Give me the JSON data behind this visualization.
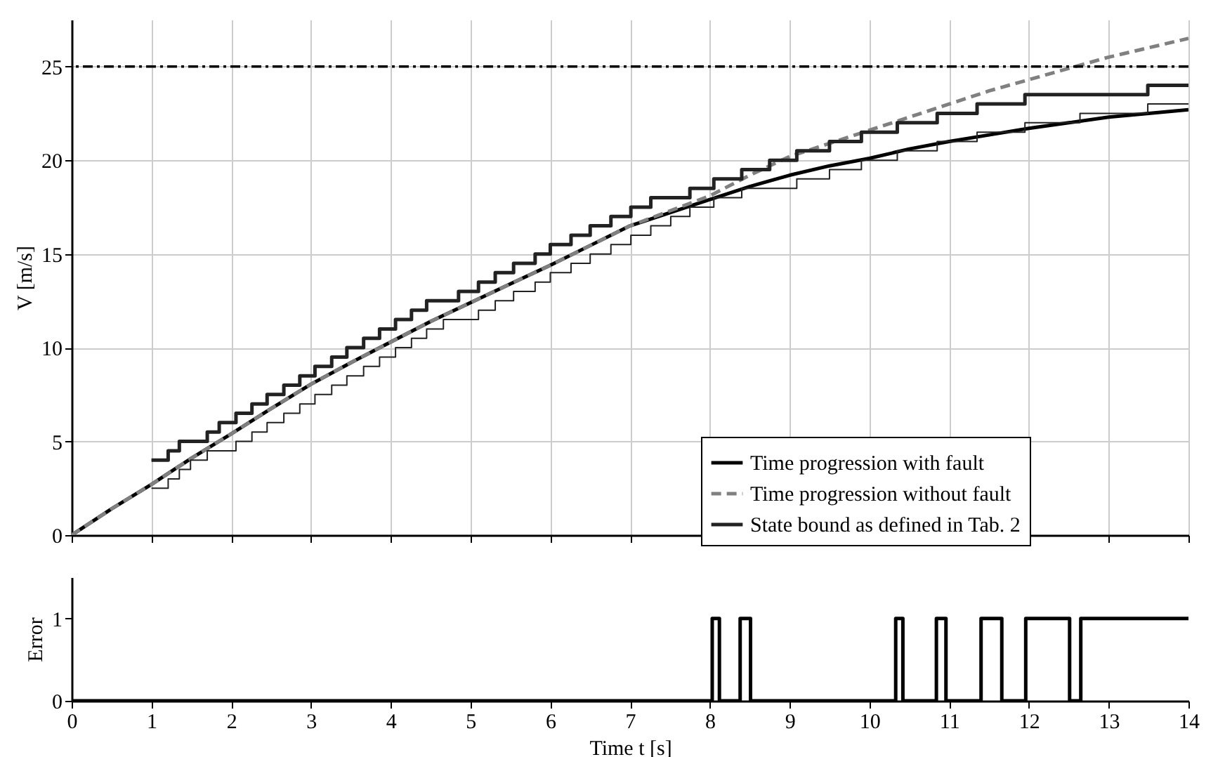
{
  "chart_data": [
    {
      "type": "line",
      "ylabel": "V [m/s]",
      "xlim": [
        0,
        14
      ],
      "ylim": [
        0,
        27.5
      ],
      "xticks": [
        0,
        1,
        2,
        3,
        4,
        5,
        6,
        7,
        8,
        9,
        10,
        11,
        12,
        13,
        14
      ],
      "yticks": [
        0,
        5,
        10,
        15,
        20,
        25
      ],
      "tick_labels": "y",
      "grid": true,
      "legend": "bottom right",
      "ref_lines": [
        {
          "axis": "y",
          "value": 25,
          "color": "#000000",
          "line_style": "dashdot"
        }
      ],
      "series": [
        {
          "name": "Time progression with fault",
          "color": "#000000",
          "line_style": "solid",
          "x": [
            0,
            0.5,
            1,
            1.5,
            2,
            2.5,
            3,
            3.5,
            4,
            4.5,
            5,
            5.5,
            6,
            6.5,
            7,
            7.5,
            8,
            8.5,
            9,
            9.5,
            10,
            10.5,
            11,
            11.5,
            12,
            12.5,
            13,
            13.5,
            14
          ],
          "values": [
            0,
            1.4,
            2.7,
            4.1,
            5.4,
            6.75,
            8.05,
            9.2,
            10.3,
            11.4,
            12.4,
            13.4,
            14.4,
            15.45,
            16.5,
            17.2,
            17.9,
            18.6,
            19.2,
            19.7,
            20.1,
            20.6,
            21.0,
            21.35,
            21.7,
            22.0,
            22.3,
            22.5,
            22.7
          ]
        },
        {
          "name": "Time progression without fault",
          "color": "#808080",
          "line_style": "dashed",
          "x": [
            0,
            0.5,
            1,
            1.5,
            2,
            2.5,
            3,
            3.5,
            4,
            4.5,
            5,
            5.5,
            6,
            6.5,
            7,
            7.5,
            8,
            8.5,
            9,
            9.5,
            10,
            10.5,
            11,
            11.5,
            12,
            12.5,
            13,
            13.5,
            14
          ],
          "values": [
            0,
            1.4,
            2.7,
            4.1,
            5.4,
            6.75,
            8.05,
            9.2,
            10.3,
            11.4,
            12.4,
            13.4,
            14.4,
            15.45,
            16.5,
            17.3,
            18.1,
            19.2,
            20.2,
            20.9,
            21.6,
            22.3,
            23.0,
            23.7,
            24.3,
            24.9,
            25.5,
            26.0,
            26.5
          ]
        },
        {
          "name": "State bound as defined in Tab. 2",
          "type": "step",
          "color": "#222222",
          "line_style": "solid",
          "x": [
            1,
            1.21,
            1.35,
            1.7,
            1.85,
            2.06,
            2.26,
            2.45,
            2.66,
            2.86,
            3.05,
            3.26,
            3.45,
            3.66,
            3.86,
            4.06,
            4.26,
            4.45,
            4.85,
            5.1,
            5.31,
            5.54,
            5.81,
            6.0,
            6.26,
            6.5,
            6.76,
            7.01,
            7.26,
            7.75,
            8.05,
            8.4,
            8.75,
            9.09,
            9.5,
            9.9,
            10.35,
            10.85,
            11.35,
            11.95,
            13.49,
            14
          ],
          "values": [
            4,
            4.5,
            5,
            5.5,
            6,
            6.5,
            7,
            7.5,
            8,
            8.5,
            9,
            9.5,
            10,
            10.5,
            11,
            11.5,
            12,
            12.5,
            13,
            13.5,
            14,
            14.5,
            15,
            15.5,
            16,
            16.5,
            17,
            17.5,
            18,
            18.5,
            19,
            19.5,
            20,
            20.5,
            21,
            21.5,
            22,
            22.5,
            23,
            23.5,
            24,
            24
          ]
        },
        {
          "type": "step",
          "color": "#222222",
          "line_style": "solid",
          "x": [
            1,
            1.21,
            1.35,
            1.49,
            1.7,
            2.06,
            2.26,
            2.45,
            2.66,
            2.86,
            3.05,
            3.26,
            3.45,
            3.66,
            3.86,
            4.06,
            4.26,
            4.45,
            4.66,
            5.1,
            5.31,
            5.54,
            5.81,
            6.0,
            6.26,
            6.5,
            6.76,
            7.01,
            7.26,
            7.51,
            7.75,
            8.05,
            8.4,
            9.09,
            9.5,
            9.9,
            10.35,
            10.85,
            11.35,
            11.95,
            12.64,
            13.49,
            14
          ],
          "values": [
            2.5,
            3,
            3.5,
            4,
            4.5,
            5,
            5.5,
            6,
            6.5,
            7,
            7.5,
            8,
            8.5,
            9,
            9.5,
            10,
            10.5,
            11,
            11.5,
            12,
            12.5,
            13,
            13.5,
            14,
            14.5,
            15,
            15.5,
            16,
            16.5,
            17,
            17.5,
            18,
            18.5,
            19,
            19.5,
            20,
            20.5,
            21,
            21.5,
            22,
            22.5,
            23,
            23
          ]
        }
      ]
    },
    {
      "type": "step",
      "xlabel": "Time t [s]",
      "ylabel": "Error",
      "xlim": [
        0,
        14
      ],
      "ylim": [
        0,
        1.5
      ],
      "xticks": [
        0,
        1,
        2,
        3,
        4,
        5,
        6,
        7,
        8,
        9,
        10,
        11,
        12,
        13,
        14
      ],
      "yticks": [
        0,
        1
      ],
      "grid": false,
      "series": [
        {
          "color": "#000000",
          "line_style": "solid",
          "x": [
            0,
            8.03,
            8.12,
            8.38,
            8.51,
            10.33,
            10.42,
            10.84,
            10.96,
            11.4,
            11.66,
            11.96,
            12.51,
            12.65,
            14
          ],
          "values": [
            0,
            1,
            0,
            1,
            0,
            1,
            0,
            1,
            0,
            1,
            0,
            1,
            0,
            1,
            1
          ]
        }
      ]
    }
  ]
}
